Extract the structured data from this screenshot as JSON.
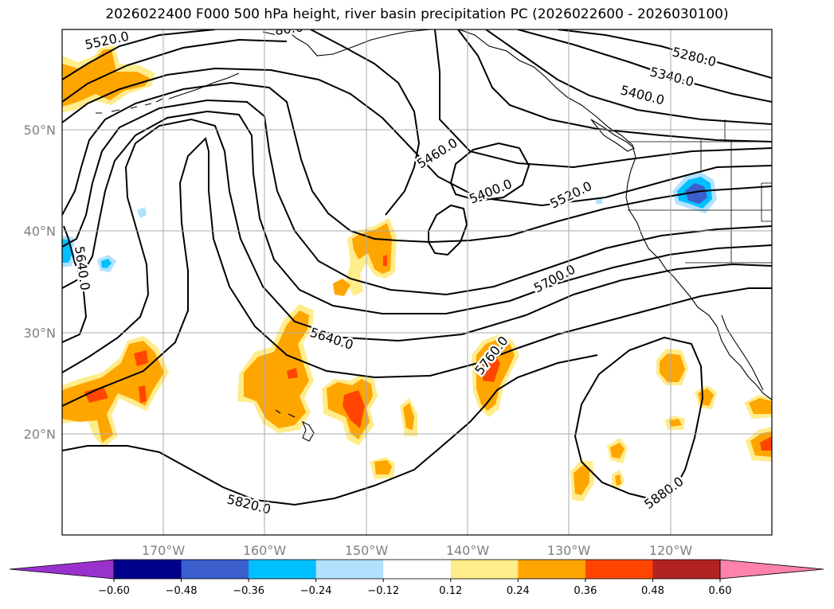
{
  "title": "2026022400 F000 500 hPa height, river basin precipitation PC (2026022600 - 2026030100)",
  "lon_labels": [
    "170°W",
    "160°W",
    "150°W",
    "140°W",
    "130°W",
    "120°W"
  ],
  "lat_labels": [
    "50°N",
    "40°N",
    "30°N",
    "20°N"
  ],
  "contour_labels": [
    "5520.0",
    "5280.0",
    "5340.0",
    "5400.0",
    "5460.0",
    "5400.0",
    "5520.0",
    "5640.0",
    "5700.0",
    "5640.0",
    "5760.0",
    "5820.0",
    "5880.0",
    "80.0"
  ],
  "colorbar": {
    "ticks": [
      "−0.60",
      "−0.48",
      "−0.36",
      "−0.24",
      "−0.12",
      "0.12",
      "0.24",
      "0.36",
      "0.48",
      "0.60"
    ],
    "colors": [
      "#9932cc",
      "#00008b",
      "#3a5fcd",
      "#00bfff",
      "#b0e2ff",
      "#ffffff",
      "#ffec8b",
      "#ffa500",
      "#ff4500",
      "#b22222",
      "#ff82ab"
    ]
  },
  "colors": {
    "contour": "#000000",
    "grid": "#a9a9a9",
    "land": "#ffffff",
    "coast": "#000000"
  }
}
